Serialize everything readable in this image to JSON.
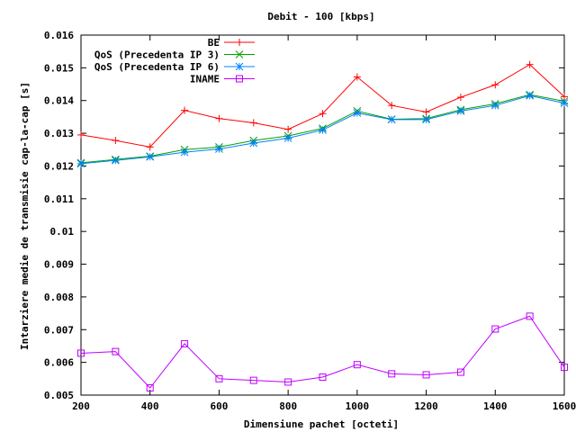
{
  "chart_data": {
    "type": "line",
    "title": "Debit - 100 [kbps]",
    "xlabel": "Dimensiune pachet [octeti]",
    "ylabel": "Intarziere medie de transmisie cap-la-cap [s]",
    "xlim": [
      200,
      1600
    ],
    "ylim": [
      0.005,
      0.016
    ],
    "xticks": [
      "200",
      "400",
      "600",
      "800",
      "1000",
      "1200",
      "1400",
      "1600"
    ],
    "yticks": [
      "0.005",
      "0.006",
      "0.007",
      "0.008",
      "0.009",
      "0.01",
      "0.011",
      "0.012",
      "0.013",
      "0.014",
      "0.015",
      "0.016"
    ],
    "grid": false,
    "legend_position": "top-right",
    "x": [
      200,
      300,
      400,
      500,
      600,
      700,
      800,
      900,
      1000,
      1100,
      1200,
      1300,
      1400,
      1500,
      1600
    ],
    "series": [
      {
        "name": "BE",
        "color": "#ff0000",
        "marker": "plus",
        "values": [
          0.01295,
          0.01278,
          0.01258,
          0.0137,
          0.01345,
          0.01332,
          0.01312,
          0.0136,
          0.01472,
          0.01385,
          0.01365,
          0.0141,
          0.01448,
          0.0151,
          0.01412
        ]
      },
      {
        "name": "QoS (Precedenta IP 3)",
        "color": "#00a000",
        "marker": "cross",
        "values": [
          0.0121,
          0.0122,
          0.0123,
          0.0125,
          0.01258,
          0.01278,
          0.01292,
          0.01315,
          0.01368,
          0.01343,
          0.01345,
          0.01372,
          0.0139,
          0.01418,
          0.01398
        ]
      },
      {
        "name": "QoS (Precedenta IP 6)",
        "color": "#0080ff",
        "marker": "asterisk",
        "values": [
          0.01207,
          0.01217,
          0.01228,
          0.01242,
          0.01252,
          0.0127,
          0.01285,
          0.0131,
          0.01362,
          0.01342,
          0.01342,
          0.01368,
          0.01385,
          0.01415,
          0.01392
        ]
      },
      {
        "name": "INAME",
        "color": "#c000ff",
        "marker": "square",
        "values": [
          0.00628,
          0.00633,
          0.00522,
          0.00657,
          0.0055,
          0.00545,
          0.0054,
          0.00555,
          0.00593,
          0.00565,
          0.00562,
          0.0057,
          0.00702,
          0.00741,
          0.00585
        ]
      }
    ]
  }
}
